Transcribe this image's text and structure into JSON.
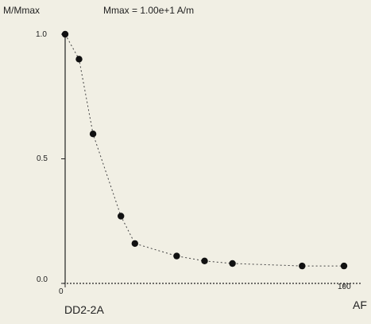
{
  "chart_data": {
    "type": "scatter",
    "title": "Mmax = 1.00e+1 A/m",
    "xlabel": "AF",
    "ylabel": "M/Mmax",
    "sample_label": "DD2-2A",
    "x_ticks": [
      "0",
      "100"
    ],
    "y_ticks": [
      "0.0",
      "0.5",
      "1.0"
    ],
    "xlim": [
      0,
      110
    ],
    "ylim": [
      0,
      1.05
    ],
    "x": [
      0,
      5,
      10,
      20,
      25,
      40,
      50,
      60,
      85,
      100
    ],
    "y": [
      1.0,
      0.9,
      0.6,
      0.27,
      0.16,
      0.11,
      0.09,
      0.08,
      0.07,
      0.07
    ],
    "dashed_connector": true
  }
}
